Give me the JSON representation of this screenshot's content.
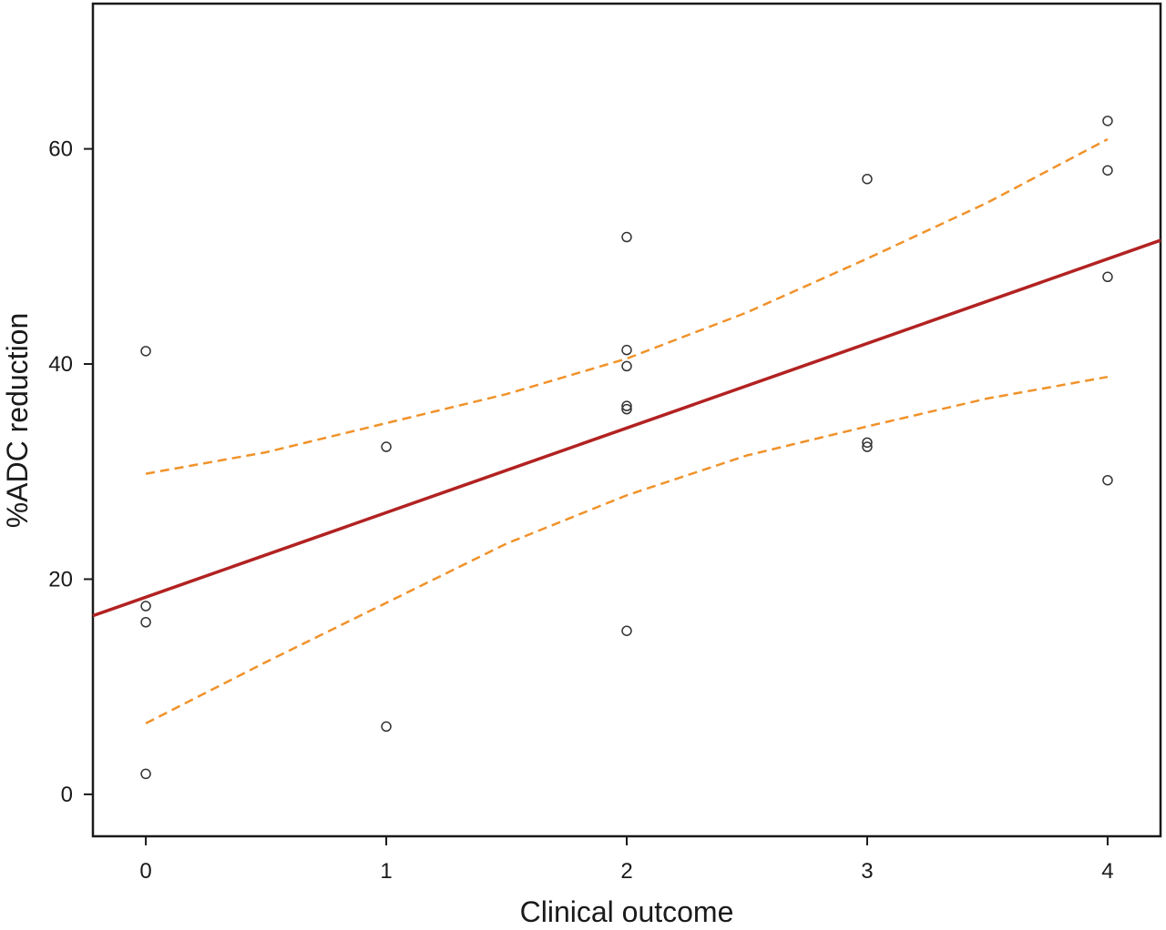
{
  "chart_data": {
    "type": "scatter",
    "title": "",
    "xlabel": "Clinical outcome",
    "ylabel": "%ADC reduction",
    "xlim": [
      -0.22,
      4.22
    ],
    "ylim": [
      -3.9,
      73.5
    ],
    "x_ticks": [
      0,
      1,
      2,
      3,
      4
    ],
    "y_ticks": [
      0,
      20,
      40,
      60
    ],
    "grid": false,
    "legend": "none",
    "points": [
      {
        "x": 0,
        "y": 41.2
      },
      {
        "x": 0,
        "y": 17.5
      },
      {
        "x": 0,
        "y": 16.0
      },
      {
        "x": 0,
        "y": 1.9
      },
      {
        "x": 1,
        "y": 32.3
      },
      {
        "x": 1,
        "y": 6.3
      },
      {
        "x": 2,
        "y": 51.8
      },
      {
        "x": 2,
        "y": 41.3
      },
      {
        "x": 2,
        "y": 39.8
      },
      {
        "x": 2,
        "y": 36.1
      },
      {
        "x": 2,
        "y": 35.8
      },
      {
        "x": 2,
        "y": 15.2
      },
      {
        "x": 3,
        "y": 57.2
      },
      {
        "x": 3,
        "y": 32.7
      },
      {
        "x": 3,
        "y": 32.3
      },
      {
        "x": 4,
        "y": 62.6
      },
      {
        "x": 4,
        "y": 58.0
      },
      {
        "x": 4,
        "y": 48.1
      },
      {
        "x": 4,
        "y": 29.2
      }
    ],
    "fit_line": {
      "x": [
        -0.22,
        4.22
      ],
      "y": [
        16.6,
        51.5
      ]
    },
    "confidence_upper": {
      "x": [
        0,
        0.5,
        1,
        1.5,
        2,
        2.5,
        3,
        3.5,
        4
      ],
      "y": [
        29.8,
        31.8,
        34.5,
        37.2,
        40.5,
        44.8,
        49.8,
        55.0,
        60.9
      ]
    },
    "confidence_lower": {
      "x": [
        0,
        0.5,
        1,
        1.5,
        2,
        2.5,
        3,
        3.5,
        4
      ],
      "y": [
        6.6,
        12.3,
        17.8,
        23.3,
        27.8,
        31.5,
        34.2,
        36.8,
        38.8
      ]
    },
    "colors": {
      "fit_line": "#b22222",
      "confidence": "#f0922a",
      "points": "#333333",
      "axis": "#1a1a1a"
    }
  }
}
